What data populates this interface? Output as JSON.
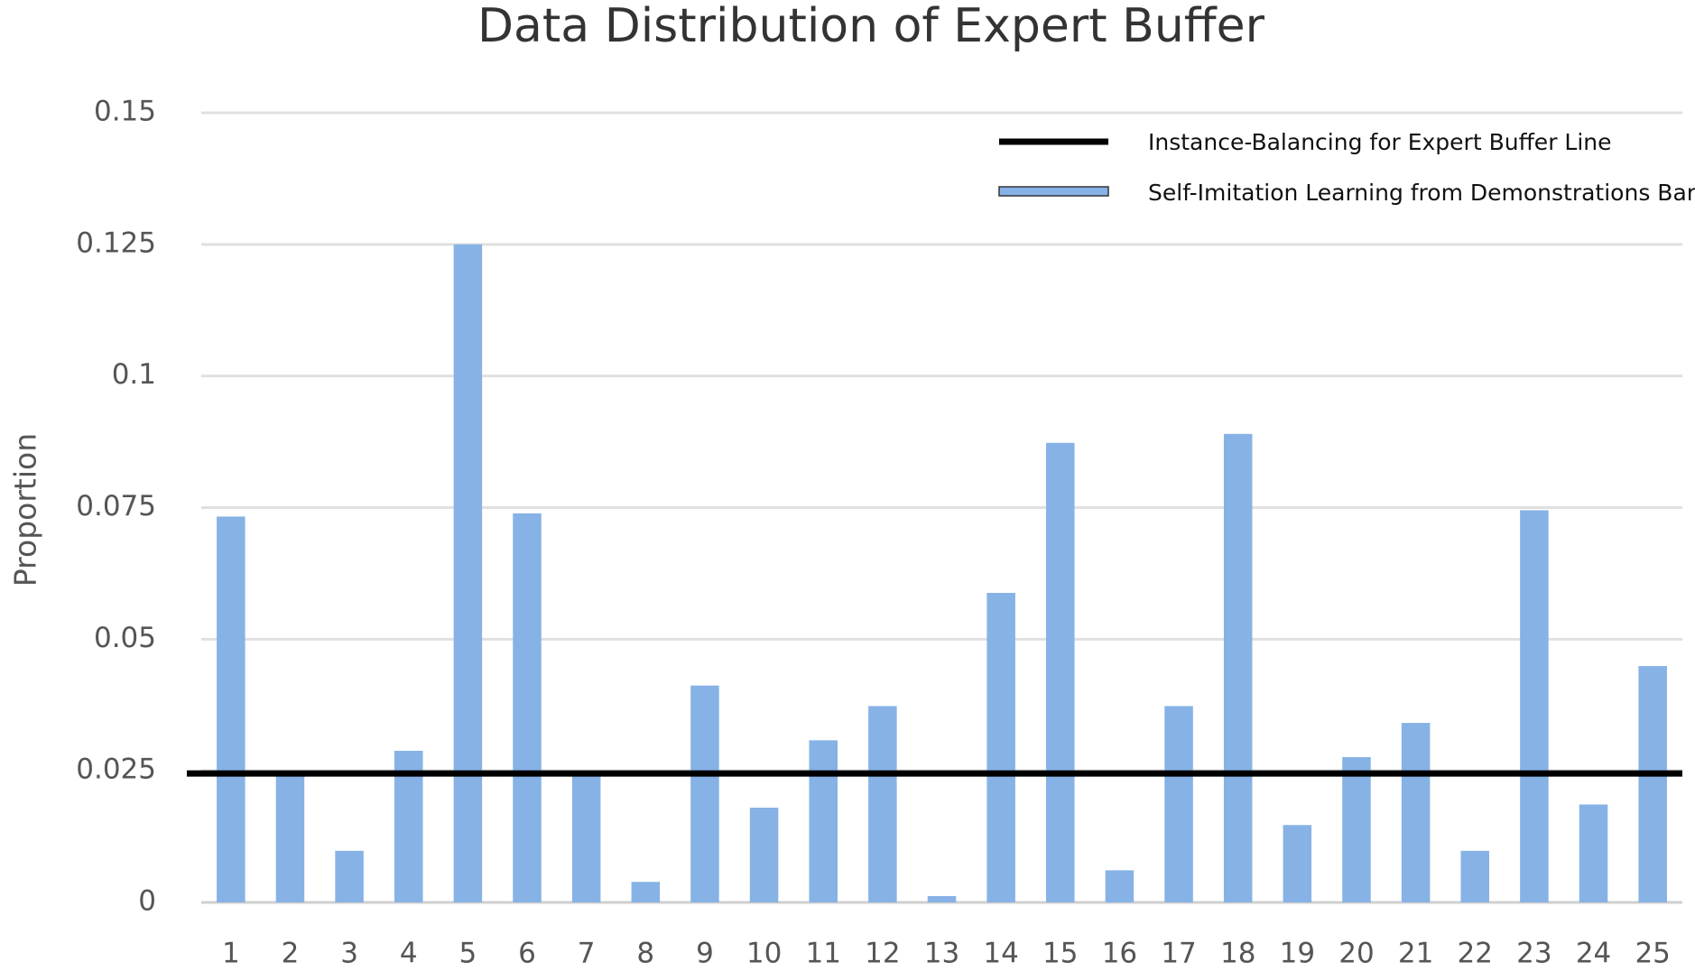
{
  "chart_data": {
    "type": "bar",
    "title": "Data Distribution of Expert Buffer",
    "y_label": "Proportion",
    "categories": [
      "1",
      "2",
      "3",
      "4",
      "5",
      "6",
      "7",
      "8",
      "9",
      "10",
      "11",
      "12",
      "13",
      "14",
      "15",
      "16",
      "17",
      "18",
      "19",
      "20",
      "21",
      "22",
      "23",
      "24",
      "25"
    ],
    "series": [
      {
        "name": "Self-Imitation Learning from Demonstrations Bar",
        "color": "#86b2e6",
        "values": [
          0.0733,
          0.0245,
          0.0098,
          0.0288,
          0.125,
          0.0739,
          0.0245,
          0.0039,
          0.0412,
          0.018,
          0.0308,
          0.0373,
          0.0012,
          0.0588,
          0.0873,
          0.0061,
          0.0373,
          0.089,
          0.0147,
          0.0276,
          0.0341,
          0.0098,
          0.0745,
          0.0186,
          0.0449
        ]
      }
    ],
    "reference_line": {
      "name": "Instance-Balancing for Expert Buffer Line",
      "value": 0.0245,
      "color": "#000000"
    },
    "ylim": [
      0,
      0.15
    ],
    "yticks": [
      0,
      0.025,
      0.05,
      0.075,
      0.1,
      0.125,
      0.15
    ],
    "grid": true,
    "legend": "top-right"
  }
}
